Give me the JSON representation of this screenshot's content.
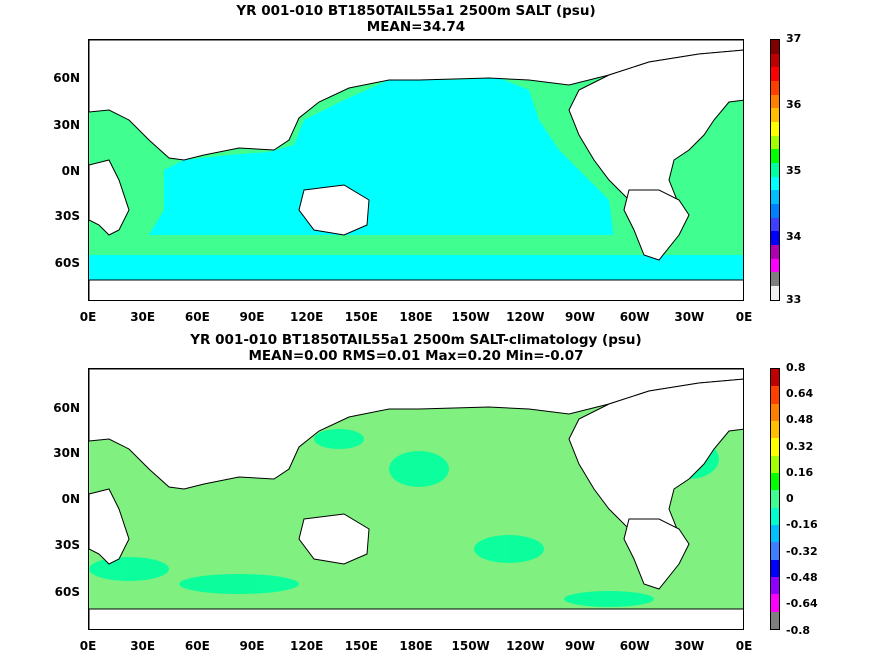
{
  "map1": {
    "title": "YR 001-010 BT1850TAIL55a1 2500m SALT (psu)",
    "subtitle": "MEAN=34.74",
    "lat_labels": [
      "60N",
      "30N",
      "0N",
      "30S",
      "60S"
    ],
    "lon_labels": [
      "0E",
      "30E",
      "60E",
      "90E",
      "120E",
      "150E",
      "180E",
      "150W",
      "120W",
      "90W",
      "60W",
      "30W",
      "0E"
    ],
    "colorbar_labels": [
      "37",
      "36",
      "35",
      "34",
      "33"
    ],
    "colorbar_colors": [
      "#f0f0f0",
      "#7f7f7f",
      "#ff00ff",
      "#b000b0",
      "#0000ff",
      "#3f3fff",
      "#007fff",
      "#00bfff",
      "#00ffff",
      "#00ff9f",
      "#00ff00",
      "#a0ff00",
      "#ffff00",
      "#ffbf00",
      "#ff7f00",
      "#ff3f00",
      "#ff0000",
      "#c00000",
      "#800000"
    ],
    "ocean_color": "#00ffff",
    "atlantic_color": "#40ff90"
  },
  "map2": {
    "title": "YR 001-010 BT1850TAIL55a1 2500m SALT-climatology (psu)",
    "subtitle": "MEAN=0.00   RMS=0.01   Max=0.20   Min=-0.07",
    "lat_labels": [
      "60N",
      "30N",
      "0N",
      "30S",
      "60S"
    ],
    "lon_labels": [
      "0E",
      "30E",
      "60E",
      "90E",
      "120E",
      "150E",
      "180E",
      "150W",
      "120W",
      "90W",
      "60W",
      "30W",
      "0E"
    ],
    "colorbar_labels": [
      "0.8",
      "0.64",
      "0.48",
      "0.32",
      "0.16",
      "0",
      "-0.16",
      "-0.32",
      "-0.48",
      "-0.64",
      "-0.8"
    ],
    "colorbar_colors": [
      "#7f7f7f",
      "#ff00ff",
      "#9000ff",
      "#0000ff",
      "#3f7fff",
      "#00bfff",
      "#00ffcc",
      "#40ff90",
      "#00ff00",
      "#a0ff00",
      "#ffff00",
      "#ffbf00",
      "#ff7f00",
      "#ff3f00",
      "#c00000"
    ],
    "ocean_color": "#00ff9f",
    "patch_color": "#80f080"
  }
}
